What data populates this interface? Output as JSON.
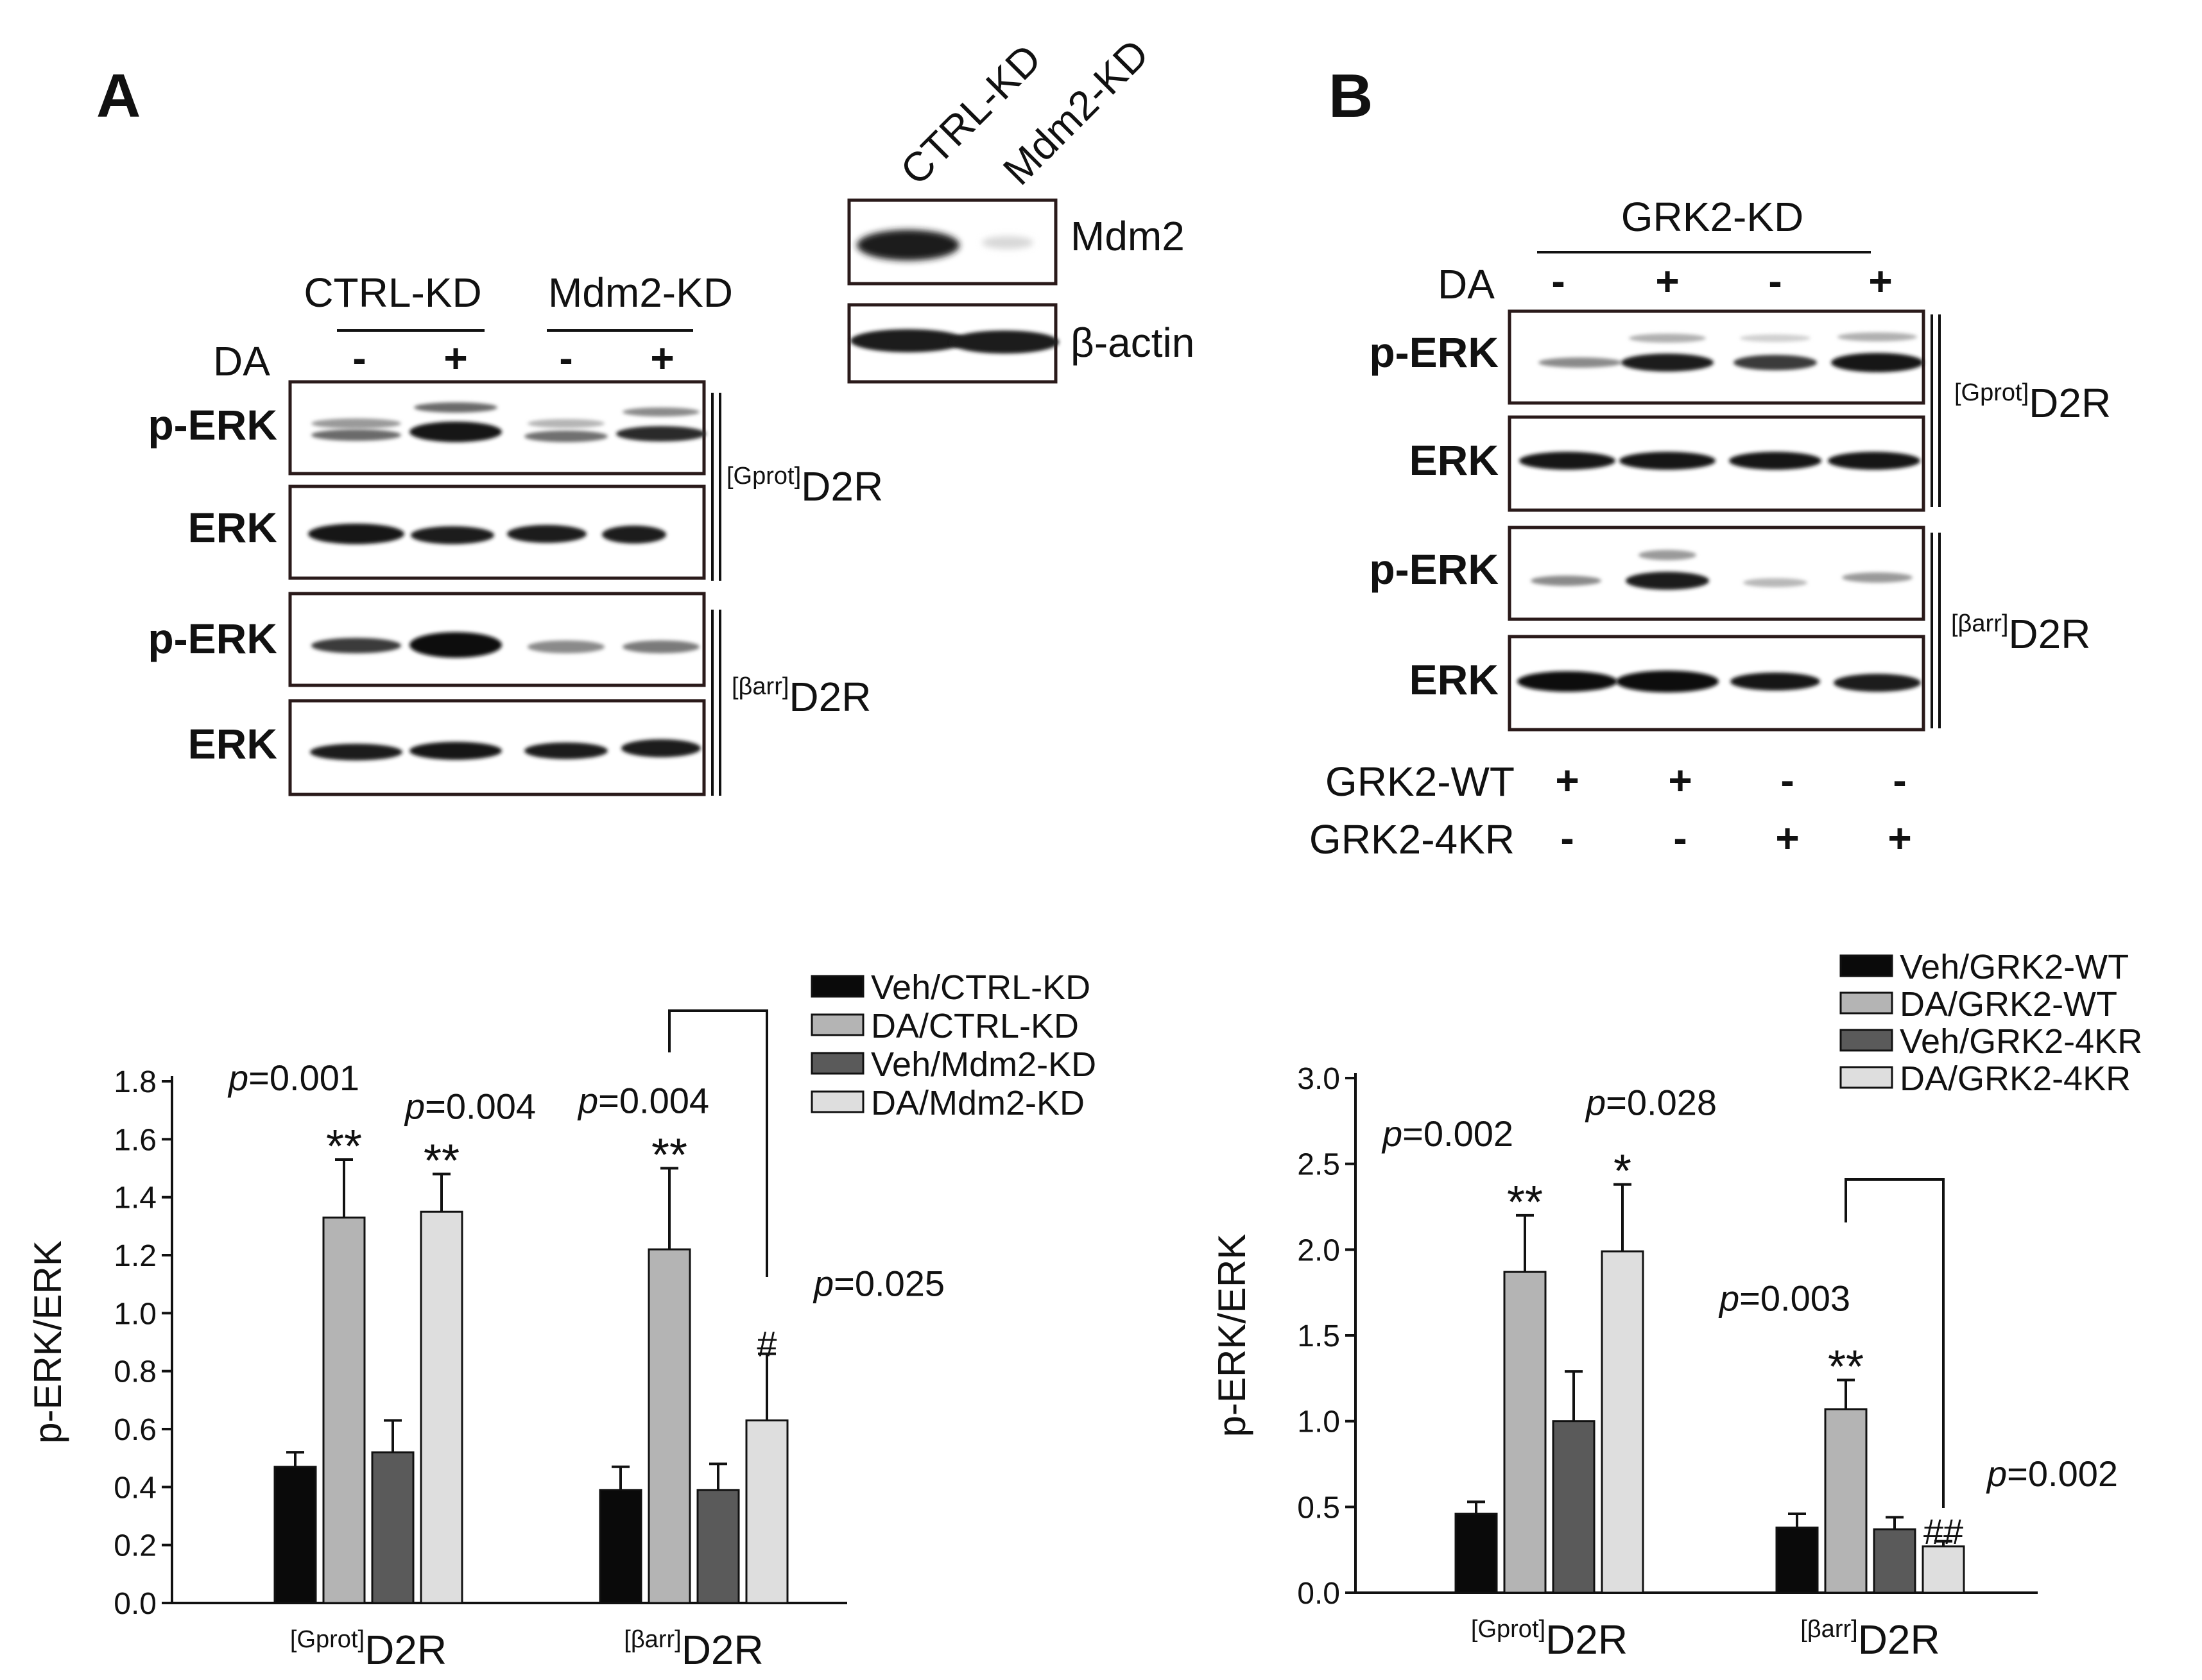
{
  "panels": {
    "A": {
      "letter": "A",
      "mdm2_check": {
        "lanes": [
          "CTRL-KD",
          "Mdm2-KD"
        ],
        "rows": [
          "Mdm2",
          "β-actin"
        ]
      },
      "blot": {
        "groups": [
          "CTRL-KD",
          "Mdm2-KD"
        ],
        "da_label": "DA",
        "da_signs": [
          "-",
          "+",
          "-",
          "+"
        ],
        "rows": [
          "p-ERK",
          "ERK",
          "p-ERK",
          "ERK"
        ],
        "receptors": [
          {
            "sup": "[Gprot]",
            "main": "D2R"
          },
          {
            "sup": "[βarr]",
            "main": "D2R"
          }
        ]
      }
    },
    "B": {
      "letter": "B",
      "blot": {
        "group": "GRK2-KD",
        "da_label": "DA",
        "da_signs": [
          "-",
          "+",
          "-",
          "+"
        ],
        "rows": [
          "p-ERK",
          "ERK",
          "p-ERK",
          "ERK"
        ],
        "receptors": [
          {
            "sup": "[Gprot]",
            "main": "D2R"
          },
          {
            "sup": "[βarr]",
            "main": "D2R"
          }
        ],
        "bottom_rows": [
          {
            "label": "GRK2-WT",
            "signs": [
              "+",
              "+",
              "-",
              "-"
            ]
          },
          {
            "label": "GRK2-4KR",
            "signs": [
              "-",
              "-",
              "+",
              "+"
            ]
          }
        ]
      }
    }
  },
  "chart_data": [
    {
      "type": "bar",
      "ylabel": "p-ERK/ERK",
      "ylim": [
        0,
        1.8
      ],
      "yticks": [
        "0.0",
        "0.2",
        "0.4",
        "0.6",
        "0.8",
        "1.0",
        "1.2",
        "1.4",
        "1.6",
        "1.8"
      ],
      "categories": [
        {
          "sup": "[Gprot]",
          "main": "D2R"
        },
        {
          "sup": "[βarr]",
          "main": "D2R"
        }
      ],
      "series": [
        {
          "name": "Veh/CTRL-KD",
          "color": "#0a0a0a",
          "values": [
            0.47,
            0.39
          ],
          "errors": [
            0.05,
            0.08
          ]
        },
        {
          "name": "DA/CTRL-KD",
          "color": "#b4b4b4",
          "values": [
            1.33,
            1.22
          ],
          "errors": [
            0.2,
            0.28
          ]
        },
        {
          "name": "Veh/Mdm2-KD",
          "color": "#5a5a5a",
          "values": [
            0.52,
            0.39
          ],
          "errors": [
            0.11,
            0.09
          ]
        },
        {
          "name": "DA/Mdm2-KD",
          "color": "#dedede",
          "values": [
            1.35,
            0.63
          ],
          "errors": [
            0.13,
            0.23
          ]
        }
      ],
      "annotations": [
        {
          "p": "0.001",
          "stars": "**"
        },
        {
          "p": "0.004",
          "stars": "**"
        },
        {
          "p": "0.004",
          "stars": "**"
        },
        {
          "p": "0.025",
          "stars": "#"
        }
      ]
    },
    {
      "type": "bar",
      "ylabel": "p-ERK/ERK",
      "ylim": [
        0,
        3.0
      ],
      "yticks": [
        "0.0",
        "0.5",
        "1.0",
        "1.5",
        "2.0",
        "2.5",
        "3.0"
      ],
      "categories": [
        {
          "sup": "[Gprot]",
          "main": "D2R"
        },
        {
          "sup": "[βarr]",
          "main": "D2R"
        }
      ],
      "series": [
        {
          "name": "Veh/GRK2-WT",
          "color": "#0a0a0a",
          "values": [
            0.46,
            0.38
          ],
          "errors": [
            0.07,
            0.08
          ]
        },
        {
          "name": "DA/GRK2-WT",
          "color": "#b4b4b4",
          "values": [
            1.87,
            1.07
          ],
          "errors": [
            0.33,
            0.17
          ]
        },
        {
          "name": "Veh/GRK2-4KR",
          "color": "#5a5a5a",
          "values": [
            1.0,
            0.37
          ],
          "errors": [
            0.29,
            0.07
          ]
        },
        {
          "name": "DA/GRK2-4KR",
          "color": "#dedede",
          "values": [
            1.99,
            0.27
          ],
          "errors": [
            0.39,
            0.03
          ]
        }
      ],
      "annotations": [
        {
          "p": "0.002",
          "stars": "**"
        },
        {
          "p": "0.028",
          "stars": "*"
        },
        {
          "p": "0.003",
          "stars": "**"
        },
        {
          "p": "0.002",
          "stars": "##"
        }
      ]
    }
  ]
}
